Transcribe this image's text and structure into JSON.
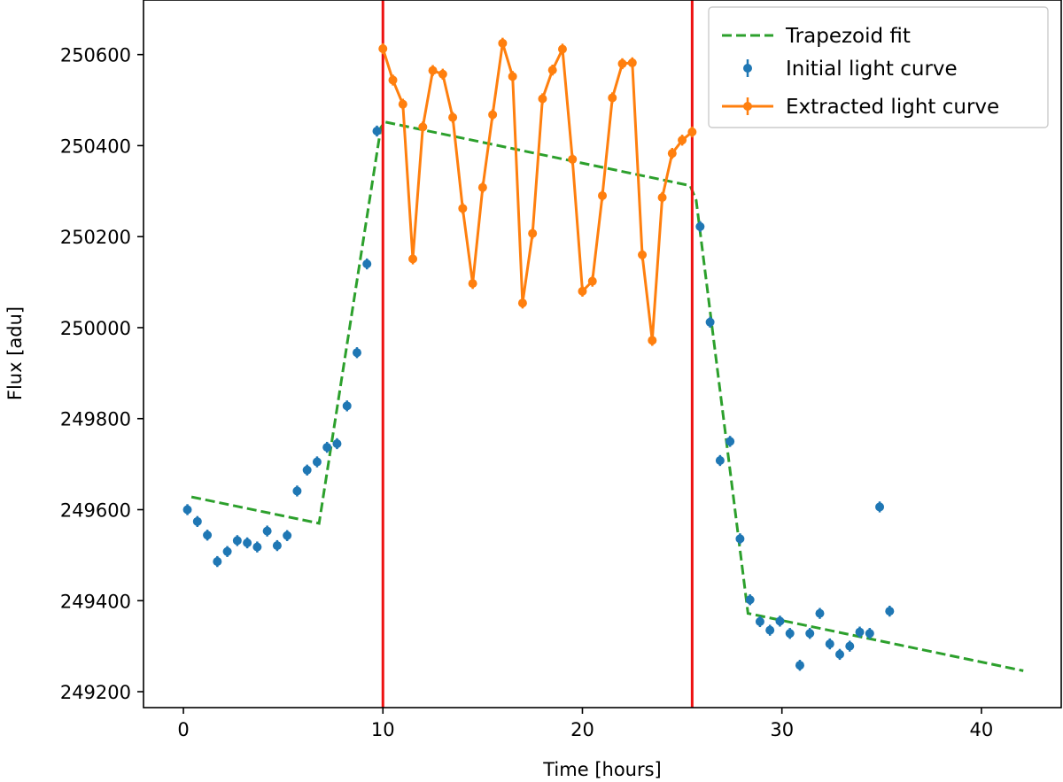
{
  "chart_data": {
    "type": "line",
    "xlabel": "Time [hours]",
    "ylabel": "Flux [adu]",
    "xlim": [
      -2,
      44
    ],
    "ylim": [
      249165,
      250720
    ],
    "x_ticks": [
      0,
      10,
      20,
      30,
      40
    ],
    "y_ticks": [
      249200,
      249400,
      249600,
      249800,
      250000,
      250200,
      250400,
      250600
    ],
    "legend_position": "upper right",
    "vertical_lines": {
      "color": "#ee1111",
      "x": [
        10.0,
        25.5
      ]
    },
    "series": [
      {
        "name": "Trapezoid fit",
        "kind": "dashed-line",
        "color": "#2ca02c",
        "x": [
          0.4,
          6.8,
          9.9,
          10.1,
          25.4,
          25.7,
          28.3,
          42.1
        ],
        "y": [
          249628,
          249570,
          250440,
          250452,
          250312,
          250280,
          249372,
          249246
        ]
      },
      {
        "name": "Initial light curve",
        "kind": "errorbar-points",
        "color": "#1f77b4",
        "error": 12,
        "x": [
          0.2,
          0.7,
          1.2,
          1.7,
          2.2,
          2.7,
          3.2,
          3.7,
          4.2,
          4.7,
          5.2,
          5.7,
          6.2,
          6.7,
          7.2,
          7.7,
          8.2,
          8.7,
          9.2,
          9.7,
          25.9,
          26.4,
          26.9,
          27.4,
          27.9,
          28.4,
          28.9,
          29.4,
          29.9,
          30.4,
          30.9,
          31.4,
          31.9,
          32.4,
          32.9,
          33.4,
          33.9,
          34.4,
          34.9,
          35.4
        ],
        "y": [
          249600,
          249574,
          249544,
          249486,
          249508,
          249532,
          249527,
          249518,
          249553,
          249521,
          249543,
          249641,
          249687,
          249705,
          249737,
          249745,
          249828,
          249945,
          250140,
          250432,
          250222,
          250012,
          249708,
          249750,
          249536,
          249402,
          249354,
          249335,
          249355,
          249328,
          249258,
          249328,
          249372,
          249305,
          249282,
          249300,
          249331,
          249328,
          249606,
          249377
        ]
      },
      {
        "name": "Extracted light curve",
        "kind": "errorbar-line",
        "color": "#ff7f0e",
        "error": 12,
        "x": [
          10.0,
          10.5,
          11.0,
          11.5,
          12.0,
          12.5,
          13.0,
          13.5,
          14.0,
          14.5,
          15.0,
          15.5,
          16.0,
          16.5,
          17.0,
          17.5,
          18.0,
          18.5,
          19.0,
          19.5,
          20.0,
          20.5,
          21.0,
          21.5,
          22.0,
          22.5,
          23.0,
          23.5,
          24.0,
          24.5,
          25.0,
          25.5
        ],
        "y": [
          250613,
          250544,
          250491,
          250151,
          250441,
          250565,
          250557,
          250462,
          250262,
          250097,
          250308,
          250468,
          250625,
          250552,
          250054,
          250207,
          250503,
          250566,
          250612,
          250370,
          250080,
          250102,
          250290,
          250505,
          250580,
          250582,
          250160,
          249972,
          250286,
          250383,
          250412,
          250430
        ]
      }
    ]
  }
}
